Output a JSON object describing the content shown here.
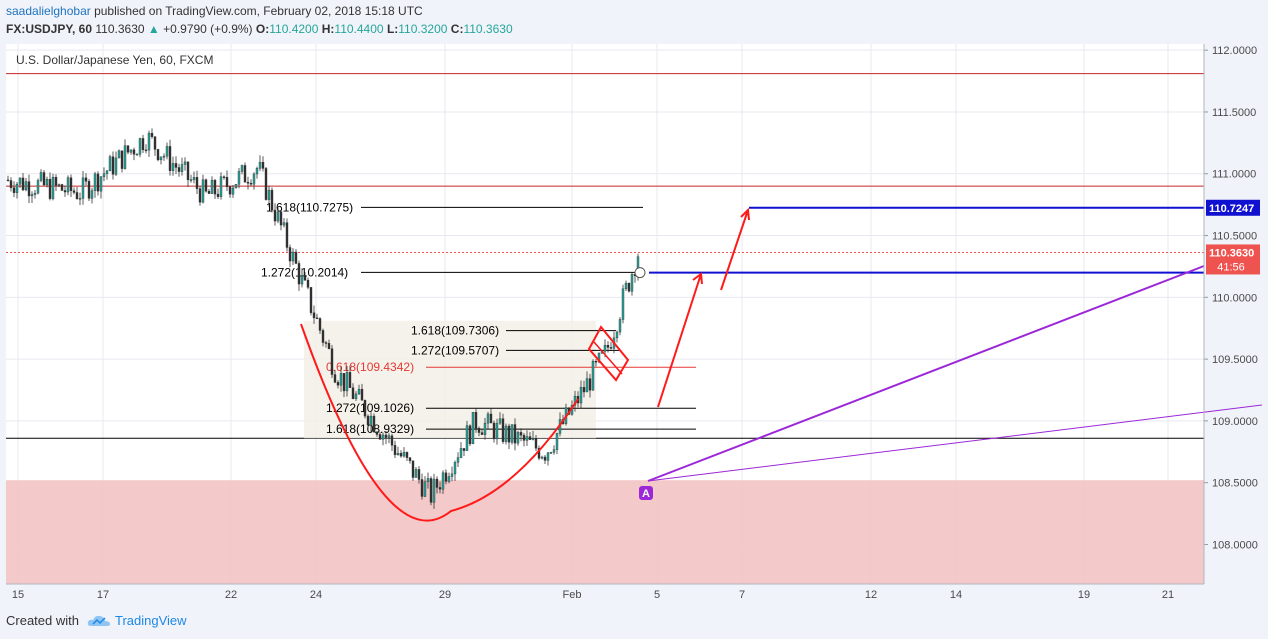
{
  "header": {
    "author": "saadalielghobar",
    "published_text": "published on TradingView.com, February 02, 2018 15:18 UTC",
    "symbol": "FX:USDJPY, 60",
    "last_price": "110.3630",
    "change_arrow": "▲",
    "change": "+0.9790 (+0.9%)",
    "open_label": "O:",
    "open": "110.4200",
    "high_label": "H:",
    "high": "110.4400",
    "low_label": "L:",
    "low": "110.3200",
    "close_label": "C:",
    "close": "110.3630"
  },
  "footer": {
    "created_with": "Created with",
    "brand": "TradingView"
  },
  "chart_data": {
    "type": "candlestick",
    "title": "U.S. Dollar/Japanese Yen, 60, FXCM",
    "x_tick_labels": [
      "15",
      "17",
      "22",
      "24",
      "29",
      "Feb",
      "5",
      "7",
      "12",
      "14",
      "19",
      "21"
    ],
    "y_tick_labels": [
      "112.0000",
      "111.5000",
      "111.0000",
      "110.5000",
      "110.0000",
      "109.5000",
      "109.0000",
      "108.5000",
      "108.0000"
    ],
    "ylim": [
      107.68,
      112.05
    ],
    "price_label": "110.3630",
    "price_label_color": "#ef5350",
    "countdown_label": "41:56",
    "target_label": "110.7247",
    "target_label_color": "#1010d0",
    "horizontal_levels": [
      {
        "value": 111.81,
        "color": "#c62828"
      },
      {
        "value": 110.9,
        "color": "#c62828"
      },
      {
        "value": 108.86,
        "color": "#000000"
      }
    ],
    "target_lines": [
      {
        "value": 110.7247,
        "color": "#1010d0"
      },
      {
        "value": 110.2,
        "color": "#1010d0"
      }
    ],
    "support_zone": {
      "from": 107.68,
      "to": 108.52,
      "color": "#f2c6c6"
    },
    "fib_levels": [
      {
        "label": "1.618(110.7275)",
        "value": 110.7275,
        "color": "#000000"
      },
      {
        "label": "1.272(110.2014)",
        "value": 110.2014,
        "color": "#000000"
      },
      {
        "label": "1.618(109.7306)",
        "value": 109.7306,
        "color": "#000000"
      },
      {
        "label": "1.272(109.5707)",
        "value": 109.5707,
        "color": "#000000"
      },
      {
        "label": "0.618(109.4342)",
        "value": 109.4342,
        "color": "#e53935"
      },
      {
        "label": "1.272(109.1026)",
        "value": 109.1026,
        "color": "#000000"
      },
      {
        "label": "1.618(108.9329)",
        "value": 108.9329,
        "color": "#000000"
      }
    ],
    "annotation_marker": "A",
    "colors": {
      "up_candle": "#26a69a",
      "down_candle": "#2f2f2f",
      "trend_lines": "#9c27d8",
      "drawing": "#ff1a1a"
    },
    "grid": true,
    "price_series_approx": [
      {
        "x": "15",
        "close": 110.95
      },
      {
        "x": "17",
        "close": 110.85
      },
      {
        "x": "17",
        "close": 111.3
      },
      {
        "x": "22",
        "close": 110.82
      },
      {
        "x": "22",
        "close": 111.05
      },
      {
        "x": "24",
        "close": 110.25
      },
      {
        "x": "24",
        "close": 109.4
      },
      {
        "x": "29",
        "close": 108.4
      },
      {
        "x": "29",
        "close": 109.0
      },
      {
        "x": "Feb",
        "close": 108.75
      },
      {
        "x": "Feb",
        "close": 109.55
      },
      {
        "x": "5",
        "close": 110.36
      }
    ]
  }
}
